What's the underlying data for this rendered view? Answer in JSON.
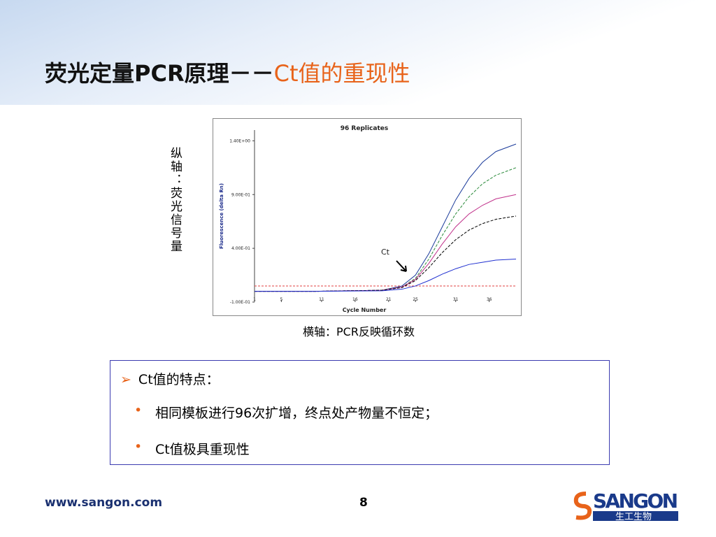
{
  "header": {
    "title": "荧光定量PCR原理－－",
    "title_highlight": "Ct值的重现性"
  },
  "figure": {
    "y_axis_note": "纵轴：荧光信号量",
    "x_axis_note": "横轴：PCR反映循环数",
    "annotation": "Ct",
    "chart_data": {
      "type": "line",
      "title": "96 Replicates",
      "x_label": "Cycle Number",
      "y_label": "Fluorescence (delta Rn)",
      "xlim": [
        1,
        40
      ],
      "xticks": [
        1,
        5,
        11,
        16,
        21,
        25,
        31,
        36
      ],
      "ylim": [
        -0.1,
        1.5
      ],
      "yticks": [
        {
          "value": 1.4,
          "label": "1.40E+00"
        },
        {
          "value": 0.9,
          "label": "9.00E-01"
        },
        {
          "value": 0.4,
          "label": "4.00E-01"
        },
        {
          "value": -0.1,
          "label": "-1.00E-01"
        }
      ],
      "threshold": 0.05,
      "threshold_color": "#e04040",
      "x": [
        1,
        10,
        20,
        23,
        25,
        27,
        29,
        31,
        33,
        35,
        37,
        40
      ],
      "series": [
        {
          "color": "#1a3a9a",
          "values": [
            0,
            0,
            0.01,
            0.05,
            0.15,
            0.35,
            0.6,
            0.85,
            1.05,
            1.2,
            1.3,
            1.37
          ]
        },
        {
          "color": "#2a8a3a",
          "values": [
            0,
            0,
            0.01,
            0.04,
            0.12,
            0.3,
            0.52,
            0.72,
            0.88,
            1.0,
            1.08,
            1.15
          ]
        },
        {
          "color": "#c0308a",
          "values": [
            0,
            0,
            0.01,
            0.04,
            0.11,
            0.26,
            0.44,
            0.6,
            0.72,
            0.8,
            0.86,
            0.9
          ]
        },
        {
          "color": "#000000",
          "values": [
            0,
            0,
            0.01,
            0.035,
            0.1,
            0.22,
            0.36,
            0.48,
            0.57,
            0.63,
            0.67,
            0.7
          ]
        },
        {
          "color": "#2030d0",
          "values": [
            0,
            0,
            0.005,
            0.02,
            0.05,
            0.1,
            0.16,
            0.21,
            0.25,
            0.27,
            0.29,
            0.3
          ]
        }
      ]
    }
  },
  "box": {
    "heading": "Ct值的特点：",
    "items": [
      "相同模板进行96次扩增，终点处产物量不恒定；",
      "Ct值极具重现性"
    ]
  },
  "footer": {
    "url": "www.sangon.com",
    "page": "8",
    "logo": "SANGON",
    "logo_sub": "生工生物"
  }
}
